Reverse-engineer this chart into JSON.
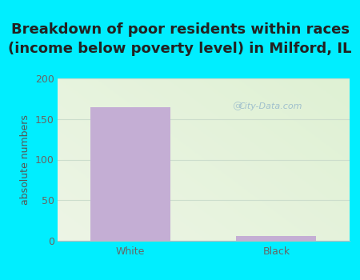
{
  "title": "Breakdown of poor residents within races\n(income below poverty level) in Milford, IL",
  "categories": [
    "White",
    "Black"
  ],
  "values": [
    165,
    6
  ],
  "bar_color": "#c4aed4",
  "ylabel": "absolute numbers",
  "ylim": [
    0,
    200
  ],
  "yticks": [
    0,
    50,
    100,
    150,
    200
  ],
  "bg_outer": "#00eeff",
  "title_fontsize": 13,
  "axis_label_fontsize": 9,
  "tick_fontsize": 9,
  "watermark": "City-Data.com",
  "title_color": "#222222",
  "tick_color": "#666666",
  "ylabel_color": "#555555",
  "grid_color": "#ccddcc",
  "bottom_spine_color": "#bbbbbb"
}
